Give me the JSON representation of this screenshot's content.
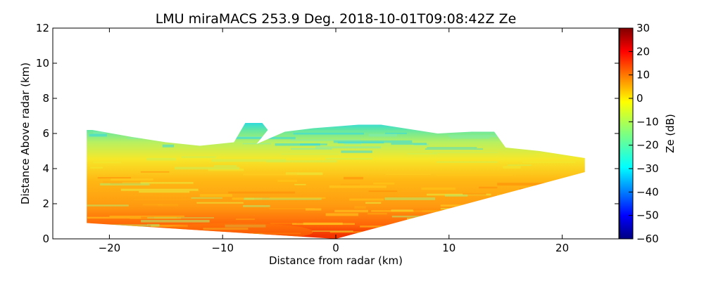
{
  "chart_data": {
    "type": "heatmap",
    "title": "LMU miraMACS 253.9 Deg. 2018-10-01T09:08:42Z  Ze",
    "xlabel": "Distance from radar (km)",
    "ylabel": "Distance Above radar  (km)",
    "xlim": [
      -25,
      25
    ],
    "ylim": [
      0,
      12
    ],
    "x_ticks": [
      -20,
      -10,
      0,
      10,
      20
    ],
    "y_ticks": [
      0,
      2,
      4,
      6,
      8,
      10,
      12
    ],
    "grid": false,
    "colorbar": {
      "label": "Ze (dB)",
      "range": [
        -60,
        30
      ],
      "ticks": [
        30,
        20,
        10,
        0,
        -10,
        -20,
        -30,
        -40,
        -50,
        -60
      ],
      "colormap": "jet"
    },
    "echo_region": {
      "radar_position_km": [
        0,
        0
      ],
      "left_edge_km": {
        "x": -22,
        "y_bottom": 0.9,
        "y_top": 6.2
      },
      "right_edge_km": {
        "x": 22,
        "y_bottom": 3.8,
        "y_top": 4.6
      },
      "cloud_top_profile_km": [
        [
          -21.5,
          6.2
        ],
        [
          -18,
          5.8
        ],
        [
          -15,
          5.5
        ],
        [
          -12,
          5.3
        ],
        [
          -9,
          5.5
        ],
        [
          -8,
          6.6
        ],
        [
          -6.5,
          6.6
        ],
        [
          -6,
          6.2
        ],
        [
          -7,
          5.4
        ],
        [
          -4.5,
          6.1
        ],
        [
          -2,
          6.3
        ],
        [
          0,
          6.4
        ],
        [
          2,
          6.5
        ],
        [
          4,
          6.5
        ],
        [
          6,
          6.3
        ],
        [
          9,
          6.0
        ],
        [
          12,
          6.1
        ],
        [
          14,
          6.1
        ],
        [
          15,
          5.2
        ],
        [
          18,
          5.0
        ],
        [
          22,
          4.6
        ]
      ],
      "core_reflectivity_dBZ": 22,
      "cloud_top_reflectivity_dBZ": -30
    }
  }
}
